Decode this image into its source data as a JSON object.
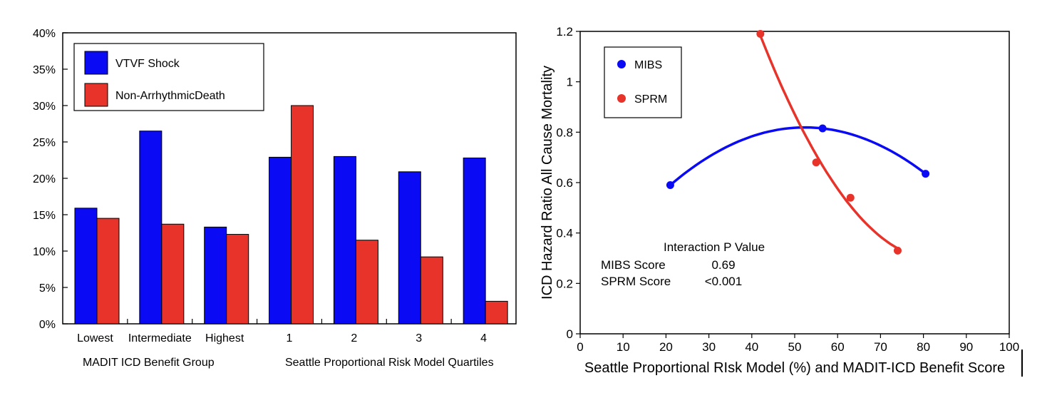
{
  "chart_data": [
    {
      "type": "bar",
      "ylim": [
        0,
        40
      ],
      "ytick_values": [
        0,
        5,
        10,
        15,
        20,
        25,
        30,
        35,
        40
      ],
      "ytick_labels": [
        "0%",
        "5%",
        "10%",
        "15%",
        "20%",
        "25%",
        "30%",
        "35%",
        "40%"
      ],
      "categories": [
        "Lowest",
        "Intermediate",
        "Highest",
        "1",
        "2",
        "3",
        "4"
      ],
      "group_labels": [
        "MADIT ICD Benefit Group",
        "Seattle Proportional Risk Model Quartiles"
      ],
      "legend": {
        "position": "top-left"
      },
      "series": [
        {
          "name": "VTVF Shock",
          "color": "#0a0af5",
          "values": [
            15.9,
            26.5,
            13.3,
            22.9,
            23.0,
            20.9,
            22.8
          ]
        },
        {
          "name": "Non-ArrhythmicDeath",
          "color": "#e8332a",
          "values": [
            14.5,
            13.7,
            12.3,
            30.0,
            11.5,
            9.2,
            3.1
          ]
        }
      ]
    },
    {
      "type": "scatter",
      "xlabel": "Seattle Proportional RIsk Model (%) and MADIT-ICD Benefit Score",
      "ylabel": "ICD Hazard Ratio All Cause Mortality",
      "xlim": [
        0,
        100
      ],
      "ylim": [
        0,
        1.2
      ],
      "xtick_values": [
        0,
        10,
        20,
        30,
        40,
        50,
        60,
        70,
        80,
        90,
        100
      ],
      "xtick_labels": [
        "0",
        "10",
        "20",
        "30",
        "40",
        "50",
        "60",
        "70",
        "80",
        "90",
        "100"
      ],
      "ytick_values": [
        0,
        0.2,
        0.4,
        0.6,
        0.8,
        1.0,
        1.2
      ],
      "ytick_labels": [
        "0",
        "0.2",
        "0.4",
        "0.6",
        "0.8",
        "1",
        "1.2"
      ],
      "legend": {
        "position": "top-left"
      },
      "series": [
        {
          "name": "MIBS",
          "color": "#0a0af5",
          "x": [
            21.0,
            56.5,
            80.5
          ],
          "y": [
            0.59,
            0.815,
            0.635
          ]
        },
        {
          "name": "SPRM",
          "color": "#e8332a",
          "x": [
            42.0,
            55.0,
            63.0,
            74.0
          ],
          "y": [
            1.19,
            0.68,
            0.54,
            0.33
          ]
        }
      ],
      "annotation": {
        "title": "Interaction P Value",
        "rows": [
          {
            "label": "MIBS Score",
            "value": "0.69"
          },
          {
            "label": "SPRM Score",
            "value": "<0.001"
          }
        ]
      }
    }
  ]
}
